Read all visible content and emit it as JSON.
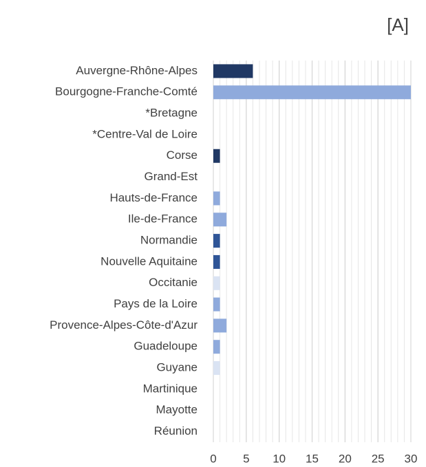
{
  "chart_data": {
    "type": "barh",
    "title": "[A]",
    "categories": [
      "Auvergne-Rhône-Alpes",
      "Bourgogne-Franche-Comté",
      "*Bretagne",
      "*Centre-Val de Loire",
      "Corse",
      "Grand-Est",
      "Hauts-de-France",
      "Ile-de-France",
      "Normandie",
      "Nouvelle Aquitaine",
      "Occitanie",
      "Pays de la Loire",
      "Provence-Alpes-Côte-d'Azur",
      "Guadeloupe",
      "Guyane",
      "Martinique",
      "Mayotte",
      "Réunion"
    ],
    "values": [
      6,
      30,
      0,
      0,
      1,
      0,
      1,
      2,
      1,
      1,
      1,
      1,
      2,
      1,
      1,
      0,
      0,
      0
    ],
    "colors": [
      "#203864",
      "#8faadc",
      null,
      null,
      "#203864",
      null,
      "#8faadc",
      "#8faadc",
      "#2f5597",
      "#2f5597",
      "#dae3f3",
      "#8faadc",
      "#8faadc",
      "#8faadc",
      "#dae3f3",
      null,
      null,
      null
    ],
    "xlim": [
      0,
      30
    ],
    "xticks": [
      0,
      5,
      10,
      15,
      20,
      25,
      30
    ],
    "grid": true,
    "minor_grid_step": 1
  }
}
